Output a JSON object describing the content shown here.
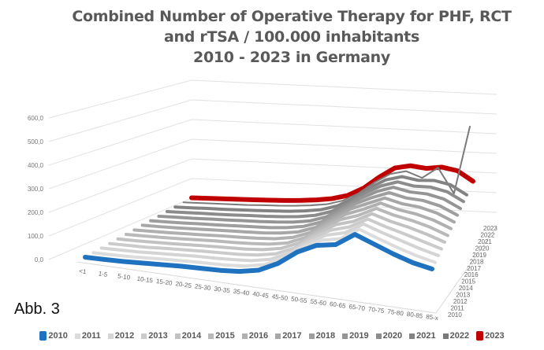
{
  "chart_data": {
    "type": "line",
    "style": "3d-stacked-depth",
    "title": [
      "Combined Number of Operative Therapy for PHF, RCT",
      "and rTSA / 100.000 inhabitants",
      "2010 - 2023 in Germany"
    ],
    "annotation": "Abb. 3",
    "ylim": [
      0,
      600
    ],
    "y_ticks": [
      "0,0",
      "100,0",
      "200,0",
      "300,0",
      "400,0",
      "500,0",
      "600,0"
    ],
    "grid": true,
    "legend_position": "bottom",
    "categories": [
      "<1",
      "1-5",
      "5-10",
      "10-15",
      "15-20",
      "20-25",
      "25-30",
      "30-35",
      "35-40",
      "40-45",
      "45-50",
      "50-55",
      "55-60",
      "60-65",
      "65-70",
      "70-75",
      "75-80",
      "80-85",
      "85-x"
    ],
    "series": [
      {
        "name": "2010",
        "color": "#1f72c0",
        "values": [
          10,
          12,
          15,
          20,
          25,
          30,
          33,
          36,
          43,
          60,
          100,
          160,
          200,
          215,
          270,
          240,
          210,
          185,
          170
        ]
      },
      {
        "name": "2011",
        "color": "#dcdcdc",
        "values": [
          9,
          11,
          14,
          19,
          24,
          28,
          31,
          34,
          41,
          58,
          96,
          155,
          196,
          214,
          266,
          237,
          210,
          186,
          168
        ]
      },
      {
        "name": "2012",
        "color": "#d4d4d4",
        "values": [
          9,
          11,
          13,
          18,
          22,
          27,
          29,
          33,
          39,
          55,
          92,
          149,
          192,
          213,
          262,
          235,
          211,
          187,
          167
        ]
      },
      {
        "name": "2013",
        "color": "#cbcbcb",
        "values": [
          8,
          10,
          12,
          17,
          21,
          25,
          28,
          31,
          38,
          53,
          88,
          144,
          188,
          212,
          257,
          232,
          211,
          188,
          165
        ]
      },
      {
        "name": "2014",
        "color": "#c2c2c2",
        "values": [
          8,
          9,
          12,
          15,
          19,
          23,
          26,
          29,
          36,
          51,
          85,
          138,
          185,
          210,
          253,
          229,
          212,
          190,
          164
        ]
      },
      {
        "name": "2015",
        "color": "#b9b9b9",
        "values": [
          7,
          9,
          11,
          14,
          18,
          22,
          24,
          28,
          34,
          48,
          81,
          133,
          181,
          209,
          249,
          227,
          212,
          191,
          162
        ]
      },
      {
        "name": "2016",
        "color": "#b0b0b0",
        "values": [
          6,
          8,
          10,
          13,
          16,
          20,
          22,
          26,
          32,
          46,
          77,
          128,
          177,
          208,
          245,
          224,
          212,
          192,
          161
        ]
      },
      {
        "name": "2017",
        "color": "#a7a7a7",
        "values": [
          6,
          7,
          9,
          12,
          15,
          18,
          21,
          24,
          31,
          44,
          73,
          122,
          173,
          207,
          240,
          221,
          213,
          193,
          159
        ]
      },
      {
        "name": "2018",
        "color": "#9e9e9e",
        "values": [
          5,
          6,
          8,
          11,
          13,
          16,
          19,
          22,
          29,
          42,
          69,
          117,
          169,
          206,
          236,
          218,
          213,
          194,
          158
        ]
      },
      {
        "name": "2019",
        "color": "#959595",
        "values": [
          4,
          6,
          7,
          10,
          12,
          15,
          17,
          21,
          27,
          39,
          65,
          112,
          165,
          205,
          232,
          216,
          213,
          195,
          156
        ]
      },
      {
        "name": "2020",
        "color": "#8c8c8c",
        "values": [
          4,
          5,
          7,
          8,
          10,
          13,
          15,
          19,
          25,
          37,
          62,
          106,
          162,
          203,
          228,
          213,
          214,
          197,
          155
        ]
      },
      {
        "name": "2021",
        "color": "#838383",
        "values": [
          3,
          4,
          6,
          7,
          9,
          11,
          14,
          17,
          24,
          35,
          58,
          101,
          158,
          202,
          223,
          210,
          214,
          198,
          153
        ]
      },
      {
        "name": "2022",
        "color": "#7a7a7a",
        "values": [
          3,
          4,
          5,
          6,
          7,
          10,
          12,
          16,
          22,
          32,
          54,
          95,
          154,
          201,
          219,
          190,
          245,
          120,
          460
        ]
      },
      {
        "name": "2023",
        "color": "#c00000",
        "values": [
          2,
          3,
          4,
          5,
          6,
          8,
          10,
          14,
          20,
          30,
          50,
          90,
          150,
          200,
          215,
          205,
          215,
          200,
          150
        ]
      }
    ]
  }
}
